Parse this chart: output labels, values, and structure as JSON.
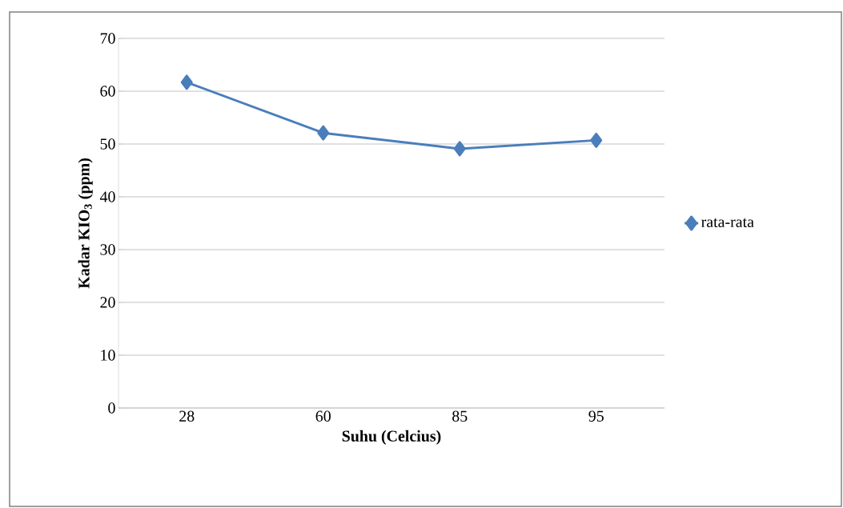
{
  "chart_data": {
    "type": "line",
    "xlabel": "Suhu (Celcius)",
    "ylabel": "Kadar KIO$_{3}$ (ppm)",
    "categories": [
      "28",
      "60",
      "85",
      "95"
    ],
    "series": [
      {
        "name": "rata-rata",
        "color": "#4a7ebb",
        "values": [
          61.7,
          52.1,
          49.1,
          50.7
        ]
      }
    ],
    "ylim": [
      0,
      70
    ],
    "yticks": [
      0,
      10,
      20,
      30,
      40,
      50,
      60,
      70
    ],
    "grid": "y",
    "legend": "right",
    "marker": "diamond",
    "line_style": "solid"
  }
}
